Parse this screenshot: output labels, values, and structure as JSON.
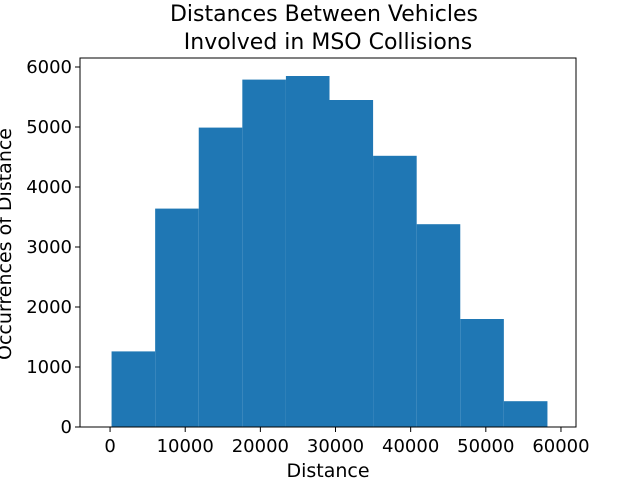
{
  "chart_data": {
    "type": "bar",
    "title_lines": [
      "Distances Between Vehicles",
      "Involved in MSO Collisions"
    ],
    "xlabel": "Distance",
    "ylabel": "Occurrences of Distance",
    "xlim": [
      -4000,
      62000
    ],
    "ylim": [
      0,
      6150
    ],
    "xticks": [
      0,
      10000,
      20000,
      30000,
      40000,
      50000,
      60000
    ],
    "yticks": [
      0,
      1000,
      2000,
      3000,
      4000,
      5000,
      6000
    ],
    "grid": false,
    "bar_color": "#1f77b4",
    "bins": [
      {
        "start": 200,
        "end": 6000,
        "value": 1260
      },
      {
        "start": 6000,
        "end": 11800,
        "value": 3640
      },
      {
        "start": 11800,
        "end": 17600,
        "value": 4990
      },
      {
        "start": 17600,
        "end": 23400,
        "value": 5790
      },
      {
        "start": 23400,
        "end": 29200,
        "value": 5850
      },
      {
        "start": 29200,
        "end": 35000,
        "value": 5450
      },
      {
        "start": 35000,
        "end": 40800,
        "value": 4520
      },
      {
        "start": 40800,
        "end": 46600,
        "value": 3380
      },
      {
        "start": 46600,
        "end": 52400,
        "value": 1800
      },
      {
        "start": 52400,
        "end": 58200,
        "value": 430
      }
    ]
  }
}
